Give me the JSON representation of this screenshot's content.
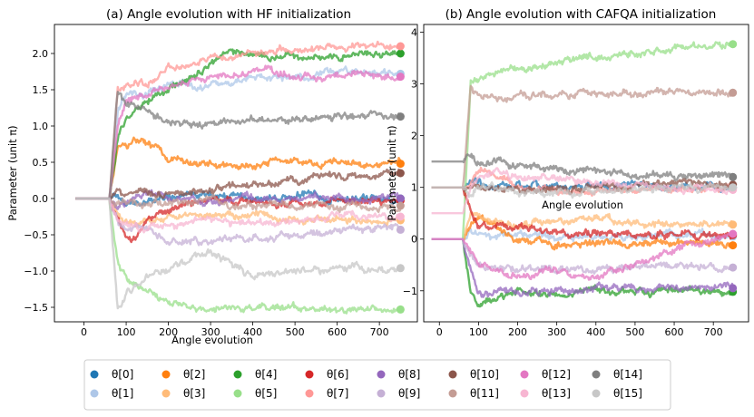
{
  "chart_data": [
    {
      "type": "line",
      "title": "(a) Angle evolution with HF initialization",
      "xlabel": "Angle evolution",
      "ylabel": "Parameter (unit π)",
      "xlim": [
        -70,
        790
      ],
      "ylim": [
        -1.7,
        2.4
      ],
      "xticks": [
        0,
        100,
        200,
        300,
        400,
        500,
        600,
        700
      ],
      "yticks": [
        -1.5,
        -1.0,
        -0.5,
        0.0,
        0.5,
        1.0,
        1.5,
        2.0
      ],
      "ytick_labels": [
        "−1.5",
        "−1.0",
        "−0.5",
        "0.0",
        "0.5",
        "1.0",
        "1.5",
        "2.0"
      ],
      "series": [
        {
          "name": "θ[0]",
          "start": 0.0,
          "x": [
            60,
            80,
            100,
            150,
            200,
            300,
            400,
            500,
            600,
            750
          ],
          "values": [
            0.0,
            0.05,
            -0.1,
            -0.05,
            0.02,
            0.05,
            0.0,
            0.05,
            0.0,
            0.0
          ]
        },
        {
          "name": "θ[1]",
          "start": 0.0,
          "x": [
            60,
            80,
            100,
            150,
            200,
            300,
            400,
            500,
            600,
            750
          ],
          "values": [
            0.0,
            1.2,
            1.45,
            1.45,
            1.6,
            1.55,
            1.65,
            1.7,
            1.75,
            1.72
          ]
        },
        {
          "name": "θ[2]",
          "start": 0.0,
          "x": [
            60,
            80,
            100,
            150,
            200,
            300,
            400,
            500,
            600,
            750
          ],
          "values": [
            0.0,
            0.8,
            0.75,
            0.8,
            0.55,
            0.5,
            0.45,
            0.55,
            0.5,
            0.48
          ]
        },
        {
          "name": "θ[3]",
          "start": 0.0,
          "x": [
            60,
            80,
            100,
            150,
            200,
            300,
            400,
            500,
            600,
            750
          ],
          "values": [
            0.0,
            -0.2,
            -0.35,
            -0.3,
            -0.25,
            -0.2,
            -0.25,
            -0.3,
            -0.3,
            -0.3
          ]
        },
        {
          "name": "θ[4]",
          "start": 0.0,
          "x": [
            60,
            80,
            100,
            150,
            200,
            300,
            350,
            400,
            500,
            600,
            750
          ],
          "values": [
            0.0,
            0.8,
            1.15,
            1.35,
            1.55,
            1.8,
            2.05,
            1.95,
            1.95,
            1.95,
            2.0
          ]
        },
        {
          "name": "θ[5]",
          "start": 0.0,
          "x": [
            60,
            80,
            100,
            150,
            200,
            300,
            400,
            500,
            600,
            750
          ],
          "values": [
            0.0,
            -0.9,
            -1.1,
            -1.3,
            -1.45,
            -1.55,
            -1.5,
            -1.5,
            -1.55,
            -1.53
          ]
        },
        {
          "name": "θ[6]",
          "start": 0.0,
          "x": [
            60,
            80,
            100,
            120,
            150,
            200,
            300,
            400,
            500,
            600,
            750
          ],
          "values": [
            0.0,
            -0.3,
            -0.55,
            -0.55,
            -0.3,
            -0.15,
            0.0,
            -0.05,
            -0.05,
            -0.05,
            -0.03
          ]
        },
        {
          "name": "θ[7]",
          "start": 0.0,
          "x": [
            60,
            80,
            100,
            150,
            200,
            300,
            400,
            500,
            600,
            750
          ],
          "values": [
            0.0,
            1.5,
            1.55,
            1.6,
            1.8,
            1.9,
            2.0,
            2.05,
            2.1,
            2.1
          ]
        },
        {
          "name": "θ[8]",
          "start": 0.0,
          "x": [
            60,
            80,
            100,
            150,
            200,
            300,
            400,
            500,
            600,
            750
          ],
          "values": [
            0.0,
            -0.1,
            -0.05,
            0.05,
            0.0,
            -0.05,
            0.0,
            0.02,
            0.0,
            0.0
          ]
        },
        {
          "name": "θ[9]",
          "start": 0.0,
          "x": [
            60,
            80,
            100,
            150,
            200,
            300,
            400,
            500,
            600,
            750
          ],
          "values": [
            0.0,
            -0.3,
            -0.4,
            -0.45,
            -0.55,
            -0.6,
            -0.55,
            -0.5,
            -0.45,
            -0.43
          ]
        },
        {
          "name": "θ[10]",
          "start": 0.0,
          "x": [
            60,
            80,
            100,
            150,
            200,
            300,
            400,
            500,
            600,
            750
          ],
          "values": [
            0.0,
            0.1,
            0.05,
            0.1,
            0.05,
            0.1,
            0.2,
            0.25,
            0.3,
            0.35
          ]
        },
        {
          "name": "θ[11]",
          "start": 0.0,
          "x": [
            60,
            80,
            100,
            150,
            200,
            300,
            400,
            500,
            600,
            750
          ],
          "values": [
            0.0,
            -0.1,
            -0.05,
            -0.1,
            -0.05,
            -0.05,
            -0.1,
            -0.1,
            -0.1,
            -0.1
          ]
        },
        {
          "name": "θ[12]",
          "start": 0.0,
          "x": [
            60,
            80,
            100,
            150,
            200,
            300,
            400,
            500,
            600,
            750
          ],
          "values": [
            0.0,
            1.0,
            1.3,
            1.45,
            1.55,
            1.7,
            1.75,
            1.7,
            1.7,
            1.68
          ]
        },
        {
          "name": "θ[13]",
          "start": 0.0,
          "x": [
            60,
            80,
            100,
            150,
            200,
            300,
            400,
            500,
            600,
            750
          ],
          "values": [
            0.0,
            -0.3,
            -0.35,
            -0.4,
            -0.35,
            -0.3,
            -0.35,
            -0.3,
            -0.25,
            -0.25
          ]
        },
        {
          "name": "θ[14]",
          "start": 0.0,
          "x": [
            60,
            80,
            100,
            150,
            200,
            300,
            400,
            500,
            600,
            750
          ],
          "values": [
            0.0,
            1.5,
            1.3,
            1.2,
            1.05,
            1.0,
            1.1,
            1.1,
            1.15,
            1.13
          ]
        },
        {
          "name": "θ[15]",
          "start": 0.0,
          "x": [
            60,
            80,
            100,
            150,
            200,
            300,
            400,
            500,
            600,
            750
          ],
          "values": [
            0.0,
            -1.5,
            -1.3,
            -1.1,
            -0.95,
            -0.75,
            -1.05,
            -1.0,
            -0.95,
            -0.96
          ]
        }
      ]
    },
    {
      "type": "line",
      "title": "(b) Angle evolution with CAFQA initialization",
      "xlabel": "Angle evolution",
      "ylabel": "Parameter (unit π)",
      "xlim": [
        -40,
        790
      ],
      "ylim": [
        -1.6,
        4.15
      ],
      "xticks": [
        0,
        100,
        200,
        300,
        400,
        500,
        600,
        700
      ],
      "yticks": [
        -1,
        0,
        1,
        2,
        3,
        4
      ],
      "ytick_labels": [
        "−1",
        "0",
        "1",
        "2",
        "3",
        "4"
      ],
      "series": [
        {
          "name": "θ[0]",
          "start": 1.0,
          "x": [
            60,
            80,
            100,
            150,
            200,
            300,
            400,
            500,
            600,
            750
          ],
          "values": [
            1.0,
            1.2,
            1.1,
            1.0,
            1.05,
            1.0,
            1.0,
            1.05,
            1.0,
            1.0
          ]
        },
        {
          "name": "θ[1]",
          "start": 0.0,
          "x": [
            60,
            80,
            100,
            150,
            200,
            300,
            400,
            500,
            600,
            750
          ],
          "values": [
            0.0,
            0.2,
            0.1,
            0.05,
            0.1,
            0.05,
            0.05,
            0.05,
            0.05,
            0.05
          ]
        },
        {
          "name": "θ[2]",
          "start": 0.0,
          "x": [
            60,
            80,
            100,
            150,
            200,
            300,
            400,
            500,
            600,
            750
          ],
          "values": [
            0.0,
            0.3,
            0.5,
            0.2,
            0.0,
            -0.1,
            -0.1,
            -0.05,
            -0.1,
            -0.12
          ]
        },
        {
          "name": "θ[3]",
          "start": 0.0,
          "x": [
            60,
            80,
            100,
            150,
            200,
            300,
            400,
            500,
            600,
            750
          ],
          "values": [
            0.0,
            0.5,
            0.4,
            0.3,
            0.3,
            0.35,
            0.4,
            0.3,
            0.3,
            0.28
          ]
        },
        {
          "name": "θ[4]",
          "start": 0.0,
          "x": [
            60,
            80,
            100,
            150,
            200,
            300,
            400,
            500,
            600,
            750
          ],
          "values": [
            0.0,
            -1.0,
            -1.3,
            -1.1,
            -1.0,
            -1.05,
            -1.0,
            -1.0,
            -1.0,
            -1.02
          ]
        },
        {
          "name": "θ[5]",
          "start": 0.0,
          "x": [
            60,
            80,
            100,
            150,
            200,
            300,
            400,
            500,
            600,
            750
          ],
          "values": [
            0.0,
            3.0,
            3.1,
            3.2,
            3.3,
            3.4,
            3.5,
            3.6,
            3.7,
            3.77
          ]
        },
        {
          "name": "θ[6]",
          "start": 1.0,
          "x": [
            60,
            80,
            100,
            150,
            200,
            300,
            400,
            500,
            600,
            750
          ],
          "values": [
            1.0,
            0.6,
            0.2,
            0.25,
            0.2,
            0.15,
            0.1,
            0.08,
            0.1,
            0.08
          ]
        },
        {
          "name": "θ[7]",
          "start": 1.0,
          "x": [
            60,
            80,
            100,
            150,
            200,
            300,
            400,
            500,
            600,
            750
          ],
          "values": [
            1.0,
            1.1,
            1.3,
            1.2,
            1.0,
            0.9,
            0.95,
            0.95,
            1.0,
            0.98
          ]
        },
        {
          "name": "θ[8]",
          "start": 0.0,
          "x": [
            60,
            80,
            100,
            150,
            200,
            300,
            400,
            500,
            600,
            750
          ],
          "values": [
            0.0,
            -0.5,
            -1.0,
            -1.0,
            -1.05,
            -1.0,
            -0.95,
            -0.95,
            -0.95,
            -0.95
          ]
        },
        {
          "name": "θ[9]",
          "start": 0.0,
          "x": [
            60,
            80,
            100,
            150,
            200,
            300,
            400,
            500,
            600,
            750
          ],
          "values": [
            0.0,
            -0.3,
            -0.5,
            -0.6,
            -0.55,
            -0.6,
            -0.6,
            -0.55,
            -0.55,
            -0.55
          ]
        },
        {
          "name": "θ[10]",
          "start": 1.0,
          "x": [
            60,
            80,
            100,
            150,
            200,
            300,
            400,
            500,
            600,
            750
          ],
          "values": [
            1.0,
            1.1,
            1.0,
            1.0,
            0.95,
            1.0,
            1.0,
            1.0,
            1.05,
            1.05
          ]
        },
        {
          "name": "θ[11]",
          "start": 1.0,
          "x": [
            60,
            80,
            100,
            150,
            200,
            300,
            400,
            500,
            600,
            750
          ],
          "values": [
            1.0,
            3.0,
            2.8,
            2.7,
            2.75,
            2.8,
            2.8,
            2.8,
            2.85,
            2.83
          ]
        },
        {
          "name": "θ[12]",
          "start": 0.0,
          "x": [
            60,
            80,
            100,
            150,
            200,
            300,
            400,
            500,
            600,
            750
          ],
          "values": [
            0.0,
            -0.2,
            -0.5,
            -0.6,
            -0.7,
            -0.6,
            -0.75,
            -0.5,
            -0.2,
            0.1
          ]
        },
        {
          "name": "θ[13]",
          "start": 0.5,
          "x": [
            60,
            80,
            100,
            150,
            200,
            300,
            400,
            500,
            600,
            750
          ],
          "values": [
            0.5,
            1.0,
            1.2,
            1.3,
            1.2,
            1.15,
            1.1,
            1.05,
            1.0,
            0.95
          ]
        },
        {
          "name": "θ[14]",
          "start": 1.5,
          "x": [
            60,
            80,
            100,
            150,
            200,
            300,
            400,
            500,
            600,
            750
          ],
          "values": [
            1.5,
            1.6,
            1.4,
            1.5,
            1.4,
            1.35,
            1.3,
            1.25,
            1.2,
            1.2
          ]
        },
        {
          "name": "θ[15]",
          "start": 1.0,
          "x": [
            60,
            80,
            100,
            150,
            200,
            300,
            400,
            500,
            600,
            750
          ],
          "values": [
            1.0,
            0.9,
            1.0,
            0.95,
            0.9,
            0.9,
            0.95,
            0.95,
            1.0,
            1.0
          ]
        }
      ]
    }
  ],
  "legend": {
    "position": "bottom-center",
    "entries": [
      {
        "label": "θ[0]",
        "color": "#1f77b4"
      },
      {
        "label": "θ[1]",
        "color": "#aec7e8"
      },
      {
        "label": "θ[2]",
        "color": "#ff7f0e"
      },
      {
        "label": "θ[3]",
        "color": "#ffbb78"
      },
      {
        "label": "θ[4]",
        "color": "#2ca02c"
      },
      {
        "label": "θ[5]",
        "color": "#98df8a"
      },
      {
        "label": "θ[6]",
        "color": "#d62728"
      },
      {
        "label": "θ[7]",
        "color": "#ff9896"
      },
      {
        "label": "θ[8]",
        "color": "#9467bd"
      },
      {
        "label": "θ[9]",
        "color": "#c5b0d5"
      },
      {
        "label": "θ[10]",
        "color": "#8c564b"
      },
      {
        "label": "θ[11]",
        "color": "#c49c94"
      },
      {
        "label": "θ[12]",
        "color": "#e377c2"
      },
      {
        "label": "θ[13]",
        "color": "#f7b6d2"
      },
      {
        "label": "θ[14]",
        "color": "#7f7f7f"
      },
      {
        "label": "θ[15]",
        "color": "#c7c7c7"
      }
    ]
  }
}
